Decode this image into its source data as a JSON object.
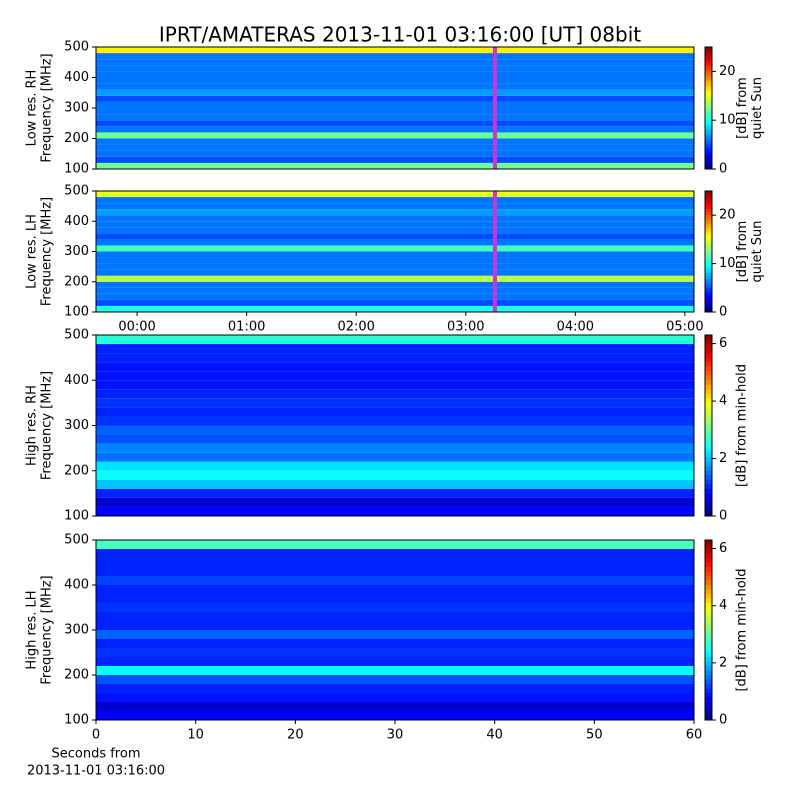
{
  "title": "IPRT/AMATERAS 2013-11-01 03:16:00 [UT]   08bit",
  "x_label": [
    "Seconds from",
    "2013-11-01 03:16:00"
  ],
  "chart_data": [
    {
      "type": "heatmap",
      "colormap": "jet",
      "ylabel": [
        "Low res. RH",
        "Frequency [MHz]"
      ],
      "colorbar_label": [
        "[dB] from",
        "quiet Sun"
      ],
      "xlim": [
        -22.5,
        305
      ],
      "marker_x": 196,
      "marker_color": "#d62fd6",
      "ylim": [
        100,
        500
      ],
      "yticks": [
        100,
        200,
        300,
        400,
        500
      ],
      "clim": [
        0,
        25
      ],
      "cticks": [
        0,
        10,
        20
      ],
      "freq_edges": [
        100,
        120,
        140,
        160,
        180,
        200,
        220,
        240,
        260,
        280,
        300,
        320,
        340,
        360,
        380,
        400,
        420,
        440,
        460,
        480,
        500
      ],
      "values": [
        12,
        5,
        6,
        6,
        6,
        12,
        6,
        5,
        6,
        6,
        6,
        5,
        7,
        6,
        6,
        6,
        6,
        6,
        6,
        16
      ]
    },
    {
      "type": "heatmap",
      "colormap": "jet",
      "ylabel": [
        "Low res. LH",
        "Frequency [MHz]"
      ],
      "colorbar_label": [
        "[dB] from",
        "quiet Sun"
      ],
      "xlim": [
        -22.5,
        305
      ],
      "marker_x": 196,
      "marker_color": "#d62fd6",
      "xticks": [
        {
          "value": 0,
          "label": "00:00"
        },
        {
          "value": 60,
          "label": "01:00"
        },
        {
          "value": 120,
          "label": "02:00"
        },
        {
          "value": 180,
          "label": "03:00"
        },
        {
          "value": 240,
          "label": "04:00"
        },
        {
          "value": 300,
          "label": "05:00"
        }
      ],
      "ylim": [
        100,
        500
      ],
      "yticks": [
        100,
        200,
        300,
        400,
        500
      ],
      "clim": [
        0,
        25
      ],
      "cticks": [
        0,
        10,
        20
      ],
      "freq_edges": [
        100,
        120,
        140,
        160,
        180,
        200,
        220,
        240,
        260,
        280,
        300,
        320,
        340,
        360,
        380,
        400,
        420,
        440,
        460,
        480,
        500
      ],
      "values": [
        10,
        5,
        6,
        6,
        6,
        14,
        6,
        6,
        6,
        6,
        11,
        6,
        5,
        6,
        6,
        6,
        7,
        6,
        6,
        15
      ]
    },
    {
      "type": "heatmap",
      "colormap": "jet",
      "ylabel": [
        "High res. RH",
        "Frequency [MHz]"
      ],
      "colorbar_label": [
        "[dB] from min-hold"
      ],
      "ylim": [
        100,
        500
      ],
      "yticks": [
        100,
        200,
        300,
        400,
        500
      ],
      "clim": [
        0,
        6.3
      ],
      "cticks": [
        0,
        2,
        4,
        6
      ],
      "freq_edges": [
        100,
        120,
        140,
        160,
        180,
        200,
        220,
        240,
        260,
        280,
        300,
        320,
        340,
        360,
        380,
        400,
        420,
        440,
        460,
        480,
        500
      ],
      "values": [
        0.8,
        0.5,
        1.0,
        2.0,
        2.4,
        2.2,
        1.5,
        1.6,
        1.3,
        1.4,
        1.1,
        1.0,
        1.1,
        1.0,
        0.9,
        0.9,
        0.9,
        1.0,
        1.0,
        2.6
      ]
    },
    {
      "type": "heatmap",
      "colormap": "jet",
      "ylabel": [
        "High res. LH",
        "Frequency [MHz]"
      ],
      "colorbar_label": [
        "[dB] from min-hold"
      ],
      "xlim": [
        0,
        60
      ],
      "xticks": [
        0,
        10,
        20,
        30,
        40,
        50,
        60
      ],
      "ylim": [
        100,
        500
      ],
      "yticks": [
        100,
        200,
        300,
        400,
        500
      ],
      "clim": [
        0,
        6.3
      ],
      "cticks": [
        0,
        2,
        4,
        6
      ],
      "freq_edges": [
        100,
        120,
        140,
        160,
        180,
        200,
        220,
        240,
        260,
        280,
        300,
        320,
        340,
        360,
        380,
        400,
        420,
        440,
        460,
        480,
        500
      ],
      "values": [
        0.8,
        0.5,
        0.9,
        1.0,
        1.3,
        2.4,
        1.0,
        1.1,
        1.0,
        1.4,
        1.0,
        1.0,
        1.1,
        1.0,
        1.0,
        1.2,
        1.0,
        1.0,
        1.0,
        2.8
      ]
    }
  ]
}
